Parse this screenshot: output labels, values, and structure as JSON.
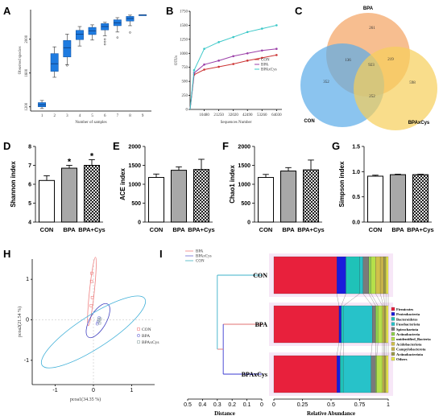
{
  "panels": {
    "a": "A",
    "b": "B",
    "c": "C",
    "d": "D",
    "e": "E",
    "f": "F",
    "g": "G",
    "h": "H",
    "i": "I"
  },
  "chart_data": [
    {
      "id": "A",
      "type": "box",
      "xlabel": "Number of samples",
      "ylabel": "Observed species",
      "categories": [
        "1",
        "2",
        "3",
        "4",
        "5",
        "6",
        "7",
        "8",
        "9"
      ],
      "ylim": [
        1150,
        2350
      ],
      "yticks": [
        1200,
        1600,
        2000
      ],
      "boxes": [
        {
          "min": 1180,
          "q1": 1200,
          "median": 1225,
          "q3": 1250,
          "max": 1275
        },
        {
          "min": 1550,
          "q1": 1620,
          "median": 1710,
          "q3": 1830,
          "max": 1910
        },
        {
          "min": 1700,
          "q1": 1790,
          "median": 1900,
          "q3": 1985,
          "max": 2060
        },
        {
          "min": 1920,
          "q1": 1995,
          "median": 2060,
          "q3": 2105,
          "max": 2150
        },
        {
          "min": 1990,
          "q1": 2055,
          "median": 2100,
          "q3": 2140,
          "max": 2170
        },
        {
          "min": 2040,
          "q1": 2110,
          "median": 2150,
          "q3": 2185,
          "max": 2200
        },
        {
          "min": 2085,
          "q1": 2160,
          "median": 2195,
          "q3": 2230,
          "max": 2255
        },
        {
          "min": 2160,
          "q1": 2215,
          "median": 2245,
          "q3": 2270,
          "max": 2285
        },
        {
          "min": 2290,
          "q1": 2290,
          "median": 2290,
          "q3": 2290,
          "max": 2290
        }
      ],
      "outliers": [
        [
          2,
          1690
        ],
        [
          5,
          1940
        ],
        [
          5,
          1970
        ],
        [
          5,
          2000
        ],
        [
          6,
          2020
        ],
        [
          7,
          2080
        ]
      ]
    },
    {
      "id": "B",
      "type": "line",
      "xlabel": "Sequences Number",
      "ylabel": "OTUs",
      "x": [
        0,
        3000,
        10480,
        21250,
        32020,
        42490,
        53260,
        64030
      ],
      "xticks": [
        10480,
        21250,
        32020,
        42490,
        53260,
        64030
      ],
      "yticks": [
        0,
        250,
        500,
        750,
        1000,
        1250,
        1500,
        1750
      ],
      "ylim": [
        0,
        1750
      ],
      "series": [
        {
          "name": "CON",
          "color": "#cc3333",
          "values": [
            0,
            620,
            710,
            760,
            810,
            870,
            920,
            970
          ]
        },
        {
          "name": "BPA",
          "color": "#9b3fa8",
          "values": [
            0,
            650,
            800,
            870,
            950,
            1000,
            1050,
            1080
          ]
        },
        {
          "name": "BPAxCys",
          "color": "#3bc8c8",
          "values": [
            0,
            700,
            1080,
            1200,
            1290,
            1380,
            1440,
            1500
          ]
        }
      ]
    },
    {
      "id": "C",
      "type": "venn",
      "sets": [
        {
          "name": "BPA",
          "color": "#f4a261"
        },
        {
          "name": "CON",
          "color": "#5aabe8"
        },
        {
          "name": "BPAxCys",
          "color": "#f7cf5a"
        }
      ],
      "regions": {
        "bpa_only": "261",
        "con_only": "352",
        "cys_only": "598",
        "bpa_con": "136",
        "bpa_cys": "219",
        "con_cys": "252",
        "all": "923"
      }
    },
    {
      "id": "D",
      "type": "bar",
      "ylabel": "Shannon index",
      "categories": [
        "CON",
        "BPA",
        "BPA+Cys"
      ],
      "values": [
        6.2,
        6.85,
        7.0
      ],
      "errors": [
        0.25,
        0.15,
        0.3
      ],
      "sig": [
        "",
        "*",
        "*"
      ],
      "ylim": [
        4,
        8
      ],
      "yticks": [
        4,
        5,
        6,
        7,
        8
      ]
    },
    {
      "id": "E",
      "type": "bar",
      "ylabel": "ACE index",
      "categories": [
        "CON",
        "BPA",
        "BPA+Cys"
      ],
      "values": [
        1180,
        1370,
        1390
      ],
      "errors": [
        90,
        90,
        270
      ],
      "ylim": [
        0,
        2000
      ],
      "yticks": [
        0,
        500,
        1000,
        1500,
        2000
      ]
    },
    {
      "id": "F",
      "type": "bar",
      "ylabel": "Chao1 index",
      "categories": [
        "CON",
        "BPA",
        "BPA+Cys"
      ],
      "values": [
        1180,
        1350,
        1380
      ],
      "errors": [
        80,
        90,
        260
      ],
      "ylim": [
        0,
        2000
      ],
      "yticks": [
        0,
        500,
        1000,
        1500,
        2000
      ]
    },
    {
      "id": "G",
      "type": "bar",
      "ylabel": "Simpson index",
      "categories": [
        "CON",
        "BPA",
        "BPA+Cys"
      ],
      "values": [
        0.91,
        0.94,
        0.94
      ],
      "errors": [
        0.02,
        0.01,
        0.01
      ],
      "ylim": [
        0,
        1.5
      ],
      "yticks": [
        "0.0",
        "0.5",
        "1.0",
        "1.5"
      ]
    },
    {
      "id": "H",
      "type": "scatter",
      "xlabel": "pcoa1(34.35 %)",
      "ylabel": "pcoa2(21.54 %)",
      "xticks": [
        "-1",
        "0",
        "1"
      ],
      "yticks": [
        "-1",
        "0",
        "1"
      ],
      "xlim": [
        -1.6,
        1.6
      ],
      "ylim": [
        -1.6,
        1.5
      ],
      "series": [
        {
          "name": "CON",
          "color": "#f08080",
          "marker": "square",
          "points": [
            [
              -0.05,
              0.95
            ],
            [
              -0.03,
              0.55
            ],
            [
              -0.06,
              0.35
            ],
            [
              -0.04,
              1.15
            ]
          ]
        },
        {
          "name": "BPA",
          "color": "#6b6bd6",
          "marker": "circle",
          "points": [
            [
              0.12,
              -0.05
            ],
            [
              0.15,
              0.05
            ],
            [
              0.1,
              -0.1
            ]
          ]
        },
        {
          "name": "BPAxCys",
          "color": "#8fa3a3",
          "marker": "square",
          "points": [
            [
              0.14,
              0.0
            ],
            [
              0.16,
              -0.08
            ],
            [
              0.18,
              0.02
            ]
          ]
        }
      ],
      "ellipses": [
        {
          "group": "CON",
          "color": "#f08080",
          "cx": -0.04,
          "cy": 0.7,
          "rx": 0.9,
          "ry": 0.06,
          "angle": -84
        },
        {
          "group": "BPA",
          "color": "#4040c0",
          "cx": 0.12,
          "cy": -0.02,
          "rx": 0.5,
          "ry": 0.2,
          "angle": -60
        },
        {
          "group": "BPAxCys",
          "color": "#40b0d8",
          "cx": 0.0,
          "cy": -0.3,
          "rx": 1.6,
          "ry": 0.4,
          "angle": -33
        }
      ]
    },
    {
      "id": "I",
      "type": "stacked-bar",
      "xlabel": "Relative Abundance",
      "dendro_label": "Distance",
      "dendro_ticks": [
        "0.5",
        "0.4",
        "0.3",
        "0.2",
        "0.1",
        "0"
      ],
      "xticks": [
        "0",
        "0.25",
        "0.5",
        "0.75",
        "1"
      ],
      "legend_lines": [
        {
          "name": "BPA",
          "color": "#f08080"
        },
        {
          "name": "BPAxCys",
          "color": "#6b6bd6"
        },
        {
          "name": "CON",
          "color": "#40b0c0"
        }
      ],
      "samples": [
        {
          "name": "CON",
          "color": "#3bb0c8",
          "values": [
            0.55,
            0.08,
            0.12,
            0.03,
            0.05,
            0.02,
            0.04,
            0.04,
            0.03,
            0.02,
            0.02
          ]
        },
        {
          "name": "BPA",
          "color": "#e07070",
          "values": [
            0.57,
            0.02,
            0.02,
            0.25,
            0.03,
            0.02,
            0.04,
            0.01,
            0.01,
            0.01,
            0.02
          ]
        },
        {
          "name": "BPAxCys",
          "color": "#3a3ad0",
          "values": [
            0.55,
            0.03,
            0.03,
            0.24,
            0.04,
            0.01,
            0.05,
            0.01,
            0.01,
            0.01,
            0.02
          ]
        }
      ],
      "taxa": [
        {
          "name": "Firmicutes",
          "color": "#e8203c"
        },
        {
          "name": "Proteobacteria",
          "color": "#1a1adc"
        },
        {
          "name": "Bacteroidetes",
          "color": "#1fc2b8"
        },
        {
          "name": "Fusobacteriota",
          "color": "#27c2c9"
        },
        {
          "name": "Spirochaetota",
          "color": "#7a7a7a"
        },
        {
          "name": "Actinobacteria",
          "color": "#8fd14f"
        },
        {
          "name": "unidentified_Bacteria",
          "color": "#b5e04a"
        },
        {
          "name": "Acidobacteriota",
          "color": "#d0c04a"
        },
        {
          "name": "Campylobacterota",
          "color": "#c6b24a"
        },
        {
          "name": "Actinobacteriota",
          "color": "#9a9a4a"
        },
        {
          "name": "Others",
          "color": "#e8e84a"
        }
      ]
    }
  ]
}
